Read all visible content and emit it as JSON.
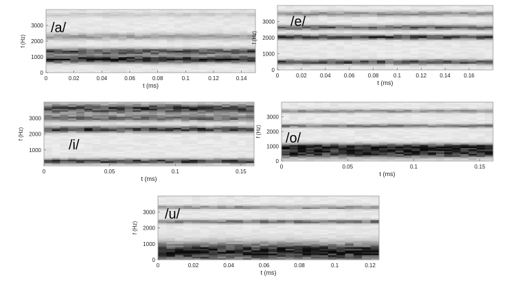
{
  "chart_data": [
    {
      "type": "heatmap",
      "annotation": "/a/",
      "xlabel": "t (ms)",
      "ylabel": "f (Hz)",
      "xlim": [
        0,
        0.15
      ],
      "ylim": [
        0,
        4000
      ],
      "x_ticks": [
        0,
        0.02,
        0.04,
        0.06,
        0.08,
        0.1,
        0.12,
        0.14
      ],
      "x_tick_labels": [
        "0",
        "0.02",
        "0.04",
        "0.06",
        "0.08",
        "0.1",
        "0.12",
        "0.14"
      ],
      "y_ticks": [
        0,
        1000,
        2000,
        3000
      ],
      "y_tick_labels": [
        "0",
        "1000",
        "2000",
        "3000"
      ],
      "formant_bands_hz": [
        {
          "f": 850,
          "intensity": 0.95,
          "width_hz": 220
        },
        {
          "f": 1350,
          "intensity": 0.75,
          "width_hz": 200
        },
        {
          "f": 2300,
          "intensity": 0.35,
          "width_hz": 200
        },
        {
          "f": 3700,
          "intensity": 0.15,
          "width_hz": 150
        }
      ]
    },
    {
      "type": "heatmap",
      "annotation": "/e/",
      "xlabel": "t (ms)",
      "ylabel": "f (Hz)",
      "xlim": [
        0,
        0.18
      ],
      "ylim": [
        0,
        4000
      ],
      "x_ticks": [
        0,
        0.02,
        0.04,
        0.06,
        0.08,
        0.1,
        0.12,
        0.14,
        0.16
      ],
      "x_tick_labels": [
        "0",
        "0.02",
        "0.04",
        "0.06",
        "0.08",
        "0.1",
        "0.12",
        "0.14",
        "0.16"
      ],
      "y_ticks": [
        0,
        1000,
        2000,
        3000
      ],
      "y_tick_labels": [
        "0",
        "1000",
        "2000",
        "3000"
      ],
      "formant_bands_hz": [
        {
          "f": 500,
          "intensity": 0.8,
          "width_hz": 150
        },
        {
          "f": 2050,
          "intensity": 0.85,
          "width_hz": 150
        },
        {
          "f": 2650,
          "intensity": 0.65,
          "width_hz": 150
        },
        {
          "f": 3500,
          "intensity": 0.45,
          "width_hz": 150
        }
      ]
    },
    {
      "type": "heatmap",
      "annotation": "/i/",
      "xlabel": "t (ms)",
      "ylabel": "f (Hz)",
      "xlim": [
        0,
        0.16
      ],
      "ylim": [
        0,
        4000
      ],
      "x_ticks": [
        0,
        0.05,
        0.1,
        0.15
      ],
      "x_tick_labels": [
        "0",
        "0.05",
        "0.1",
        "0.15"
      ],
      "y_ticks": [
        1000,
        2000,
        3000
      ],
      "y_tick_labels": [
        "1000",
        "2000",
        "3000"
      ],
      "formant_bands_hz": [
        {
          "f": 300,
          "intensity": 0.85,
          "width_hz": 150
        },
        {
          "f": 2300,
          "intensity": 0.85,
          "width_hz": 180
        },
        {
          "f": 3000,
          "intensity": 0.6,
          "width_hz": 200
        },
        {
          "f": 3600,
          "intensity": 0.8,
          "width_hz": 300
        }
      ]
    },
    {
      "type": "heatmap",
      "annotation": "/o/",
      "xlabel": "t (ms)",
      "ylabel": "f (Hz)",
      "xlim": [
        0,
        0.16
      ],
      "ylim": [
        0,
        4000
      ],
      "x_ticks": [
        0,
        0.05,
        0.1,
        0.15
      ],
      "x_tick_labels": [
        "0",
        "0.05",
        "0.1",
        "0.15"
      ],
      "y_ticks": [
        0,
        1000,
        2000,
        3000
      ],
      "y_tick_labels": [
        "0",
        "1000",
        "2000",
        "3000"
      ],
      "formant_bands_hz": [
        {
          "f": 600,
          "intensity": 0.95,
          "width_hz": 350
        },
        {
          "f": 1000,
          "intensity": 0.7,
          "width_hz": 200
        },
        {
          "f": 2400,
          "intensity": 0.55,
          "width_hz": 120
        },
        {
          "f": 3400,
          "intensity": 0.45,
          "width_hz": 120
        }
      ]
    },
    {
      "type": "heatmap",
      "annotation": "/u/",
      "xlabel": "t (ms)",
      "ylabel": "f (Hz)",
      "xlim": [
        0,
        0.125
      ],
      "ylim": [
        0,
        4000
      ],
      "x_ticks": [
        0,
        0.02,
        0.04,
        0.06,
        0.08,
        0.1,
        0.12
      ],
      "x_tick_labels": [
        "0",
        "0.02",
        "0.04",
        "0.06",
        "0.08",
        "0.1",
        "0.12"
      ],
      "y_ticks": [
        0,
        1000,
        2000,
        3000
      ],
      "y_tick_labels": [
        "0",
        "1000",
        "2000",
        "3000"
      ],
      "formant_bands_hz": [
        {
          "f": 500,
          "intensity": 1.0,
          "width_hz": 550
        },
        {
          "f": 2400,
          "intensity": 0.6,
          "width_hz": 120
        },
        {
          "f": 3300,
          "intensity": 0.45,
          "width_hz": 120
        }
      ]
    }
  ]
}
